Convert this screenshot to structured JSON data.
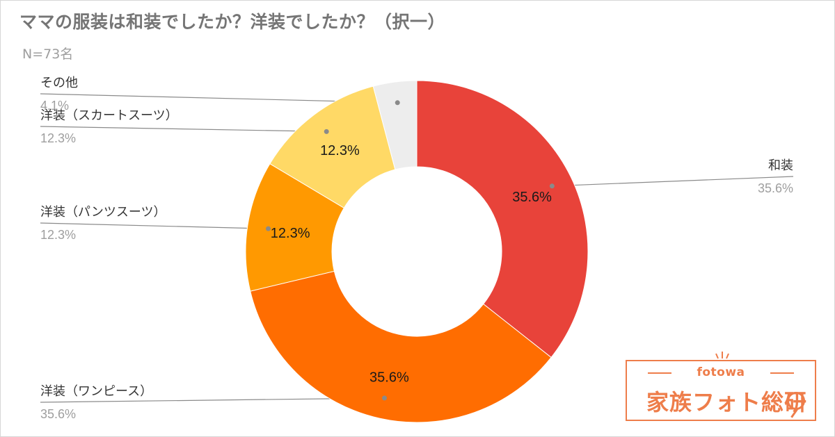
{
  "title": "ママの服装は和装でしたか？洋装でしたか？（択一）",
  "subtitle": "N=73名",
  "chart_data": {
    "type": "pie",
    "donut": true,
    "title": "ママの服装は和装でしたか？洋装でしたか？（択一）",
    "subtitle": "N=73名",
    "slices": [
      {
        "label": "和装",
        "value": 35.6,
        "label_text": "35.6%",
        "color": "#e8433a"
      },
      {
        "label": "洋装（ワンピース）",
        "value": 35.6,
        "label_text": "35.6%",
        "color": "#ff6d01"
      },
      {
        "label": "洋装（パンツスーツ）",
        "value": 12.3,
        "label_text": "12.3%",
        "color": "#ff9901"
      },
      {
        "label": "洋装（スカートスーツ）",
        "value": 12.3,
        "label_text": "12.3%",
        "color": "#ffd966"
      },
      {
        "label": "その他",
        "value": 4.1,
        "label_text": "4.1%",
        "color": "#ededed"
      }
    ],
    "start_angle": "top",
    "direction": "clockwise",
    "legend": "callout-labels"
  },
  "logo": {
    "brand": "fotowa",
    "name": "家族フォト総研",
    "color": "#ee7d4a"
  }
}
